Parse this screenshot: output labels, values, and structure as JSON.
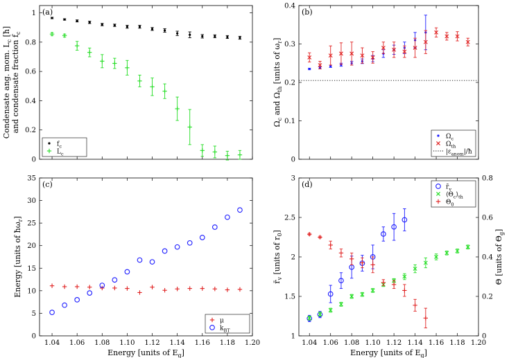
{
  "chart_data": [
    {
      "id": "a",
      "panel_label": "(a)",
      "type": "scatter",
      "xlim": [
        1.03,
        1.2
      ],
      "ylim": [
        0,
        1.05
      ],
      "xticks": [
        1.04,
        1.06,
        1.08,
        1.1,
        1.12,
        1.14,
        1.16,
        1.18,
        1.2
      ],
      "yticks": [
        0,
        0.2,
        0.4,
        0.6,
        0.8,
        1
      ],
      "ytick_labels": [
        "0",
        "0.2",
        "0.4",
        "0.6",
        "0.8",
        "1"
      ],
      "ylabel_lines": [
        "Condensate ang. mom. L_c [ħ]",
        "and condensate fraction f_c"
      ],
      "legend": "bottom-left",
      "series": [
        {
          "name": "f_c",
          "marker": "dot",
          "color": "#000000",
          "x": [
            1.04,
            1.05,
            1.06,
            1.07,
            1.08,
            1.09,
            1.1,
            1.11,
            1.12,
            1.13,
            1.14,
            1.15,
            1.16,
            1.17,
            1.18,
            1.19
          ],
          "y": [
            0.965,
            0.955,
            0.945,
            0.935,
            0.92,
            0.915,
            0.905,
            0.905,
            0.89,
            0.88,
            0.86,
            0.85,
            0.84,
            0.84,
            0.835,
            0.83
          ],
          "err": [
            0.005,
            0.005,
            0.007,
            0.008,
            0.008,
            0.008,
            0.01,
            0.01,
            0.01,
            0.012,
            0.015,
            0.02,
            0.012,
            0.01,
            0.01,
            0.01
          ]
        },
        {
          "name": "L_c",
          "marker": "plus",
          "color": "#22dd22",
          "x": [
            1.04,
            1.05,
            1.06,
            1.07,
            1.08,
            1.09,
            1.1,
            1.11,
            1.12,
            1.13,
            1.14,
            1.15,
            1.16,
            1.17,
            1.18,
            1.19
          ],
          "y": [
            0.855,
            0.845,
            0.775,
            0.73,
            0.67,
            0.655,
            0.625,
            0.535,
            0.495,
            0.465,
            0.345,
            0.22,
            0.06,
            0.05,
            0.025,
            0.03
          ],
          "err": [
            0.01,
            0.01,
            0.03,
            0.03,
            0.045,
            0.035,
            0.05,
            0.04,
            0.06,
            0.05,
            0.08,
            0.12,
            0.04,
            0.04,
            0.03,
            0.03
          ]
        }
      ]
    },
    {
      "id": "b",
      "panel_label": "(b)",
      "type": "scatter",
      "xlim": [
        1.03,
        1.2
      ],
      "ylim": [
        0,
        0.4
      ],
      "xticks": [
        1.04,
        1.06,
        1.08,
        1.1,
        1.12,
        1.14,
        1.16,
        1.18,
        1.2
      ],
      "yticks": [
        0,
        0.1,
        0.2,
        0.3,
        0.4
      ],
      "ytick_labels": [
        "0",
        "0.1",
        "0.2",
        "0.3",
        "0.4"
      ],
      "ylabel": "Ω_c and Ω_th [units of ω_r]",
      "legend": "bottom-right",
      "hline": {
        "name": "|ε_anom|/ħ",
        "y": 0.205,
        "style": "dotted"
      },
      "series": [
        {
          "name": "Ω_c",
          "marker": "dot",
          "color": "#1a1aff",
          "x": [
            1.04,
            1.05,
            1.06,
            1.07,
            1.08,
            1.09,
            1.1,
            1.11,
            1.12,
            1.13,
            1.14,
            1.15
          ],
          "y": [
            0.235,
            0.238,
            0.242,
            0.246,
            0.25,
            0.255,
            0.262,
            0.275,
            0.285,
            0.29,
            0.31,
            0.33
          ],
          "err": [
            0.002,
            0.003,
            0.003,
            0.004,
            0.005,
            0.006,
            0.008,
            0.01,
            0.012,
            0.015,
            0.02,
            0.045
          ]
        },
        {
          "name": "Ω_th",
          "marker": "x",
          "color": "#e02020",
          "x": [
            1.04,
            1.05,
            1.06,
            1.07,
            1.08,
            1.09,
            1.1,
            1.11,
            1.12,
            1.13,
            1.14,
            1.15,
            1.16,
            1.17,
            1.18,
            1.19
          ],
          "y": [
            0.265,
            0.245,
            0.27,
            0.275,
            0.275,
            0.27,
            0.265,
            0.29,
            0.285,
            0.28,
            0.29,
            0.305,
            0.33,
            0.32,
            0.32,
            0.305
          ],
          "err": [
            0.012,
            0.01,
            0.025,
            0.028,
            0.03,
            0.02,
            0.015,
            0.015,
            0.02,
            0.015,
            0.025,
            0.03,
            0.012,
            0.01,
            0.012,
            0.01
          ]
        }
      ]
    },
    {
      "id": "c",
      "panel_label": "(c)",
      "type": "scatter",
      "xlim": [
        1.03,
        1.2
      ],
      "ylim": [
        0,
        35
      ],
      "xticks": [
        1.04,
        1.06,
        1.08,
        1.1,
        1.12,
        1.14,
        1.16,
        1.18,
        1.2
      ],
      "xtick_labels": [
        "1.04",
        "1.06",
        "1.08",
        "1.10",
        "1.12",
        "1.14",
        "1.16",
        "1.18",
        "1.20"
      ],
      "yticks": [
        0,
        5,
        10,
        15,
        20,
        25,
        30,
        35
      ],
      "ytick_labels": [
        "0",
        "5",
        "10",
        "15",
        "20",
        "25",
        "30",
        "35"
      ],
      "xlabel": "Energy [units of E_g]",
      "ylabel": "Energy [units of ħω_r]",
      "legend": "bottom-right",
      "series": [
        {
          "name": "μ",
          "marker": "plus",
          "color": "#e02020",
          "x": [
            1.04,
            1.05,
            1.06,
            1.07,
            1.08,
            1.09,
            1.1,
            1.11,
            1.12,
            1.13,
            1.14,
            1.15,
            1.16,
            1.17,
            1.18,
            1.19
          ],
          "y": [
            11.1,
            10.9,
            10.9,
            10.8,
            10.6,
            10.6,
            10.5,
            9.6,
            10.8,
            10.1,
            10.4,
            10.5,
            10.5,
            10.4,
            10.2,
            10.3
          ]
        },
        {
          "name": "k_BT",
          "marker": "circle",
          "color": "#1a1aff",
          "x": [
            1.04,
            1.05,
            1.06,
            1.07,
            1.08,
            1.09,
            1.1,
            1.11,
            1.12,
            1.13,
            1.14,
            1.15,
            1.16,
            1.17,
            1.18,
            1.19
          ],
          "y": [
            5.2,
            6.8,
            8.0,
            9.5,
            11.2,
            12.4,
            14.2,
            16.8,
            16.4,
            18.8,
            19.7,
            20.6,
            21.8,
            24.1,
            26.3,
            27.9
          ]
        }
      ]
    },
    {
      "id": "d",
      "panel_label": "(d)",
      "type": "scatter",
      "xlim": [
        1.03,
        1.2
      ],
      "ylim": [
        1,
        3
      ],
      "ylim_right": [
        0,
        0.8
      ],
      "xticks": [
        1.04,
        1.06,
        1.08,
        1.1,
        1.12,
        1.14,
        1.16,
        1.18,
        1.2
      ],
      "xtick_labels": [
        "1.04",
        "1.06",
        "1.08",
        "1.10",
        "1.12",
        "1.14",
        "1.16",
        "1.18",
        "1.20"
      ],
      "yticks": [
        1,
        1.5,
        2,
        2.5,
        3
      ],
      "ytick_labels": [
        "1",
        "1.5",
        "2",
        "2.5",
        "3"
      ],
      "yticks_right": [
        0,
        0.2,
        0.4,
        0.6,
        0.8
      ],
      "ytick_labels_right": [
        "0",
        "0.2",
        "0.4",
        "0.6",
        "0.8"
      ],
      "xlabel": "Energy [units of E_g]",
      "ylabel": "r̄_v [units of r_0]",
      "ylabel_right": "Θ [units of Θ_g]",
      "legend": "top-right",
      "series": [
        {
          "name": "r̄_v",
          "marker": "circle",
          "color": "#1a1aff",
          "axis": "left",
          "x": [
            1.04,
            1.05,
            1.06,
            1.07,
            1.08,
            1.09,
            1.1,
            1.11,
            1.12,
            1.13
          ],
          "y": [
            1.22,
            1.27,
            1.53,
            1.7,
            1.87,
            1.92,
            2.0,
            2.29,
            2.38,
            2.47
          ],
          "err": [
            0.04,
            0.04,
            0.11,
            0.1,
            0.14,
            0.1,
            0.15,
            0.09,
            0.17,
            0.14
          ]
        },
        {
          "name": "⟨Θ_c⟩_th",
          "marker": "x",
          "color": "#22dd22",
          "axis": "right",
          "x": [
            1.04,
            1.05,
            1.06,
            1.07,
            1.08,
            1.09,
            1.1,
            1.11,
            1.12,
            1.13,
            1.14,
            1.15,
            1.16,
            1.17,
            1.18,
            1.19
          ],
          "y": [
            0.09,
            0.11,
            0.13,
            0.16,
            0.2,
            0.21,
            0.23,
            0.26,
            0.28,
            0.3,
            0.34,
            0.37,
            0.4,
            0.42,
            0.43,
            0.45
          ],
          "err": [
            0.01,
            0.01,
            0.01,
            0.01,
            0.01,
            0.01,
            0.01,
            0.01,
            0.01,
            0.015,
            0.02,
            0.025,
            0.015,
            0.01,
            0.01,
            0.01
          ]
        },
        {
          "name": "Θ_0",
          "marker": "plus",
          "color": "#e02020",
          "axis": "right",
          "x": [
            1.04,
            1.05,
            1.06,
            1.07,
            1.08,
            1.09,
            1.1,
            1.11,
            1.12,
            1.13,
            1.14,
            1.15
          ],
          "y": [
            0.515,
            0.5,
            0.46,
            0.42,
            0.39,
            0.37,
            0.36,
            0.27,
            0.26,
            0.23,
            0.155,
            0.09
          ],
          "err": [
            0.005,
            0.005,
            0.02,
            0.02,
            0.03,
            0.025,
            0.04,
            0.015,
            0.02,
            0.03,
            0.03,
            0.05
          ]
        }
      ]
    }
  ]
}
